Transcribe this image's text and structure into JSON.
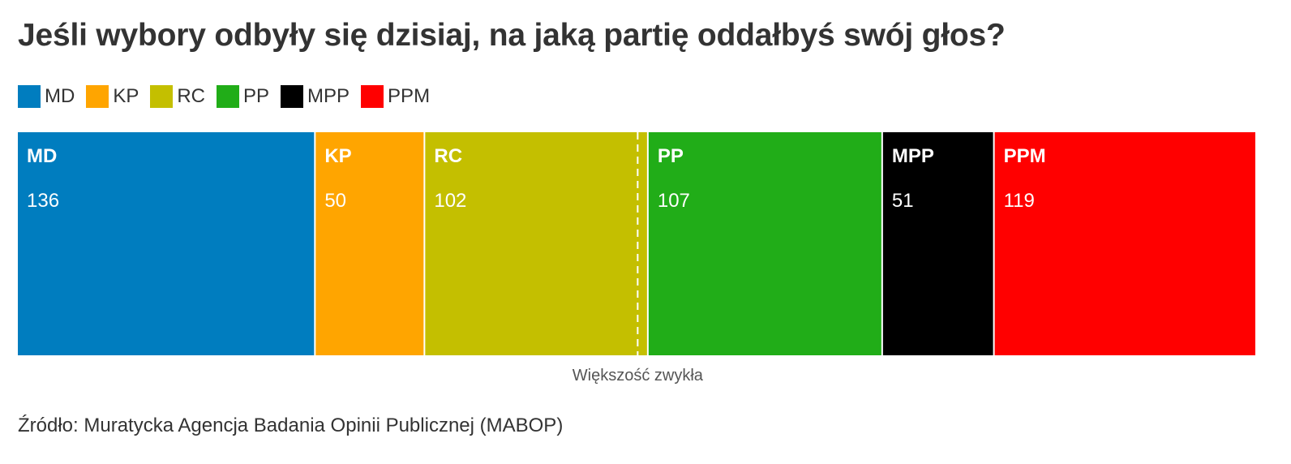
{
  "title": "Jeśli wybory odbyły się dzisiaj, na jaką partię oddałbyś swój głos?",
  "source": "Źródło: Muratycka Agencja Badania Opinii Publicznej (MABOP)",
  "chart_data": {
    "type": "bar",
    "orientation": "horizontal-stacked",
    "title": "Jeśli wybory odbyły się dzisiaj, na jaką partię oddałbyś swój głos?",
    "categories": [
      "MD",
      "KP",
      "RC",
      "PP",
      "MPP",
      "PPM"
    ],
    "values": [
      136,
      50,
      102,
      107,
      51,
      119
    ],
    "colors": [
      "#007dbf",
      "#ffa500",
      "#c4bf00",
      "#21ad18",
      "#000000",
      "#ff0000"
    ],
    "total": 565,
    "legend": {
      "placement": "top-left",
      "entries": [
        {
          "label": "MD",
          "color": "#007dbf"
        },
        {
          "label": "KP",
          "color": "#ffa500"
        },
        {
          "label": "RC",
          "color": "#c4bf00"
        },
        {
          "label": "PP",
          "color": "#21ad18"
        },
        {
          "label": "MPP",
          "color": "#000000"
        },
        {
          "label": "PPM",
          "color": "#ff0000"
        }
      ]
    },
    "reference_line": {
      "label": "Większość zwykła",
      "value": 283
    },
    "grid": false
  }
}
